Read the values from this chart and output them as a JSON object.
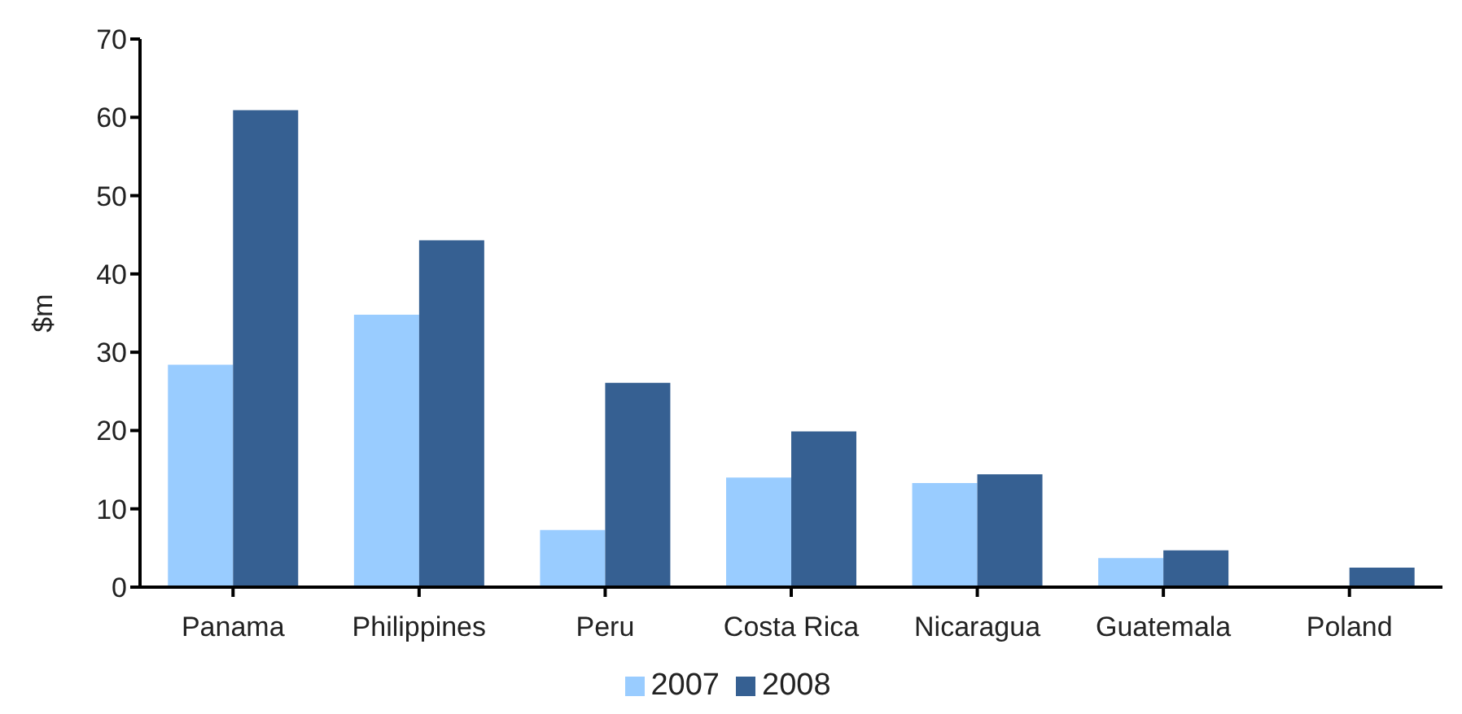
{
  "chart_data": {
    "type": "bar",
    "ylabel": "$m",
    "categories": [
      "Panama",
      "Philippines",
      "Peru",
      "Costa Rica",
      "Nicaragua",
      "Guatemala",
      "Poland"
    ],
    "series": [
      {
        "name": "2007",
        "color": "#99ccff",
        "values": [
          28.4,
          34.8,
          7.3,
          14.0,
          13.3,
          3.7,
          0
        ]
      },
      {
        "name": "2008",
        "color": "#366092",
        "values": [
          60.9,
          44.3,
          26.1,
          19.9,
          14.4,
          4.7,
          2.5
        ]
      }
    ],
    "ylim": [
      0,
      70
    ],
    "yticks": [
      0,
      10,
      20,
      30,
      40,
      50,
      60,
      70
    ],
    "grid": false,
    "legend": "bottom"
  }
}
